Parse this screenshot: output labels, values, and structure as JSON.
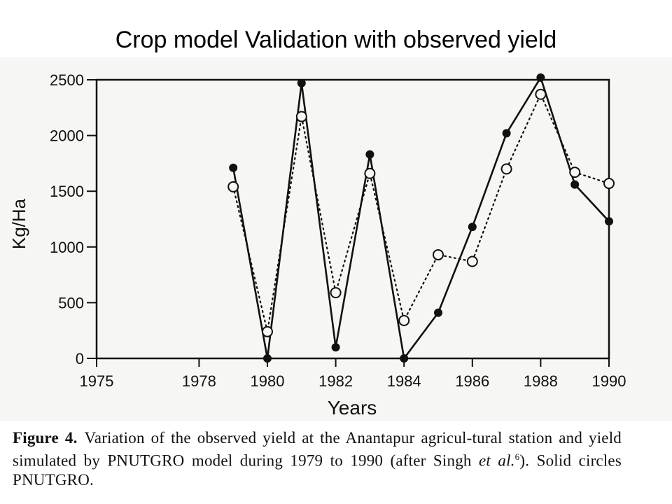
{
  "slide": {
    "title": "Crop model Validation with observed yield"
  },
  "caption": {
    "figure_label": "Figure 4.",
    "text_1": "Variation of the observed yield at the Anantapur agricul-tural station and yield simulated by PNUTGRO model during 1979 to 1990 (after Singh ",
    "text_italic": "et al.",
    "superscript": "6",
    "text_2": "). Solid circles PNUTGRO."
  },
  "colors": {
    "ink": "#111111",
    "background": "#ffffff",
    "scan_paper": "#f6f6f4"
  },
  "chart_data": {
    "type": "line",
    "xlabel": "Years",
    "ylabel": "Kg/Ha",
    "xlim": [
      1975,
      1990
    ],
    "ylim": [
      0,
      2500
    ],
    "xticks": [
      1975,
      1978,
      1980,
      1982,
      1984,
      1986,
      1988,
      1990
    ],
    "xtick_labels": [
      "1975",
      "1978",
      "1980",
      "1982",
      "1984",
      "1986",
      "1988",
      "1990"
    ],
    "yticks": [
      0,
      500,
      1000,
      1500,
      2000,
      2500
    ],
    "x": [
      1979,
      1980,
      1981,
      1982,
      1983,
      1984,
      1985,
      1986,
      1987,
      1988,
      1989,
      1990
    ],
    "series": [
      {
        "marker": "filled-circle",
        "line": "solid",
        "values": [
          1710,
          0,
          2470,
          100,
          1830,
          0,
          410,
          1180,
          2020,
          2520,
          1560,
          1230
        ]
      },
      {
        "marker": "open-circle",
        "line": "dotted",
        "values": [
          1540,
          240,
          2170,
          590,
          1660,
          340,
          930,
          870,
          1700,
          2370,
          1670,
          1570
        ]
      }
    ],
    "grid": false,
    "legend": "none"
  }
}
